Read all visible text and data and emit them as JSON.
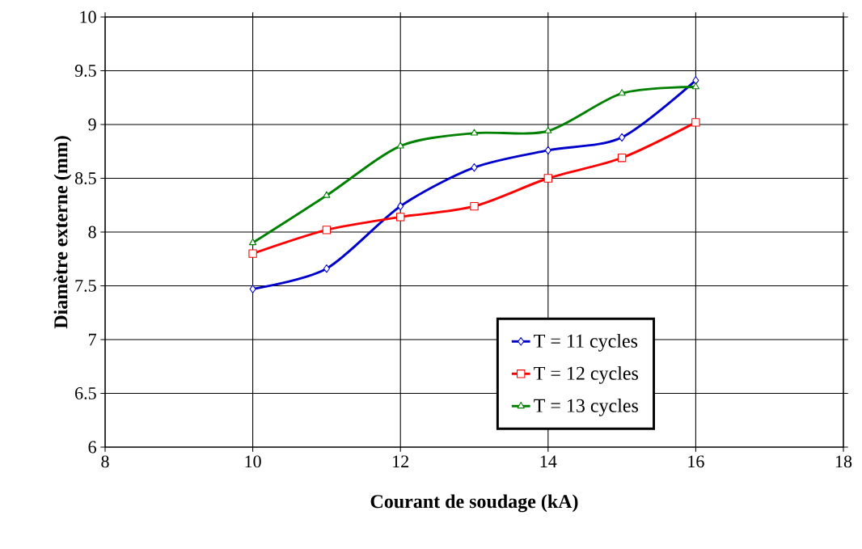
{
  "chart_data": {
    "type": "line",
    "xlabel": "Courant de soudage (kA)",
    "ylabel": "Diamètre externe (mm)",
    "xlim": [
      8,
      18
    ],
    "xticks": [
      8,
      10,
      12,
      14,
      16,
      18
    ],
    "ylim": [
      6,
      10
    ],
    "yticks": [
      6,
      {
        "value": 6.5,
        "label": "6.5"
      },
      7,
      {
        "value": 7.5,
        "label": "7.5"
      },
      8,
      {
        "value": 8.5,
        "label": "8.5"
      },
      9,
      {
        "value": 9.5,
        "label": "9.5"
      },
      10
    ],
    "grid": true,
    "legend": "bottom right",
    "line_style": "solid",
    "x": [
      10,
      11,
      12,
      13,
      14,
      15,
      16
    ],
    "series": [
      {
        "name": "T = 11 cycles",
        "color": "#0000cc",
        "marker": "diamond",
        "values": [
          7.47,
          7.66,
          8.24,
          8.6,
          8.76,
          8.88,
          9.41
        ]
      },
      {
        "name": "T = 12 cycles",
        "color": "#ff0000",
        "marker": "square",
        "values": [
          7.8,
          8.02,
          8.14,
          8.24,
          8.5,
          8.69,
          9.02
        ]
      },
      {
        "name": "T = 13 cycles",
        "color": "#008000",
        "marker": "triangle",
        "values": [
          7.9,
          8.34,
          8.8,
          8.92,
          8.94,
          9.29,
          9.35
        ]
      }
    ]
  }
}
